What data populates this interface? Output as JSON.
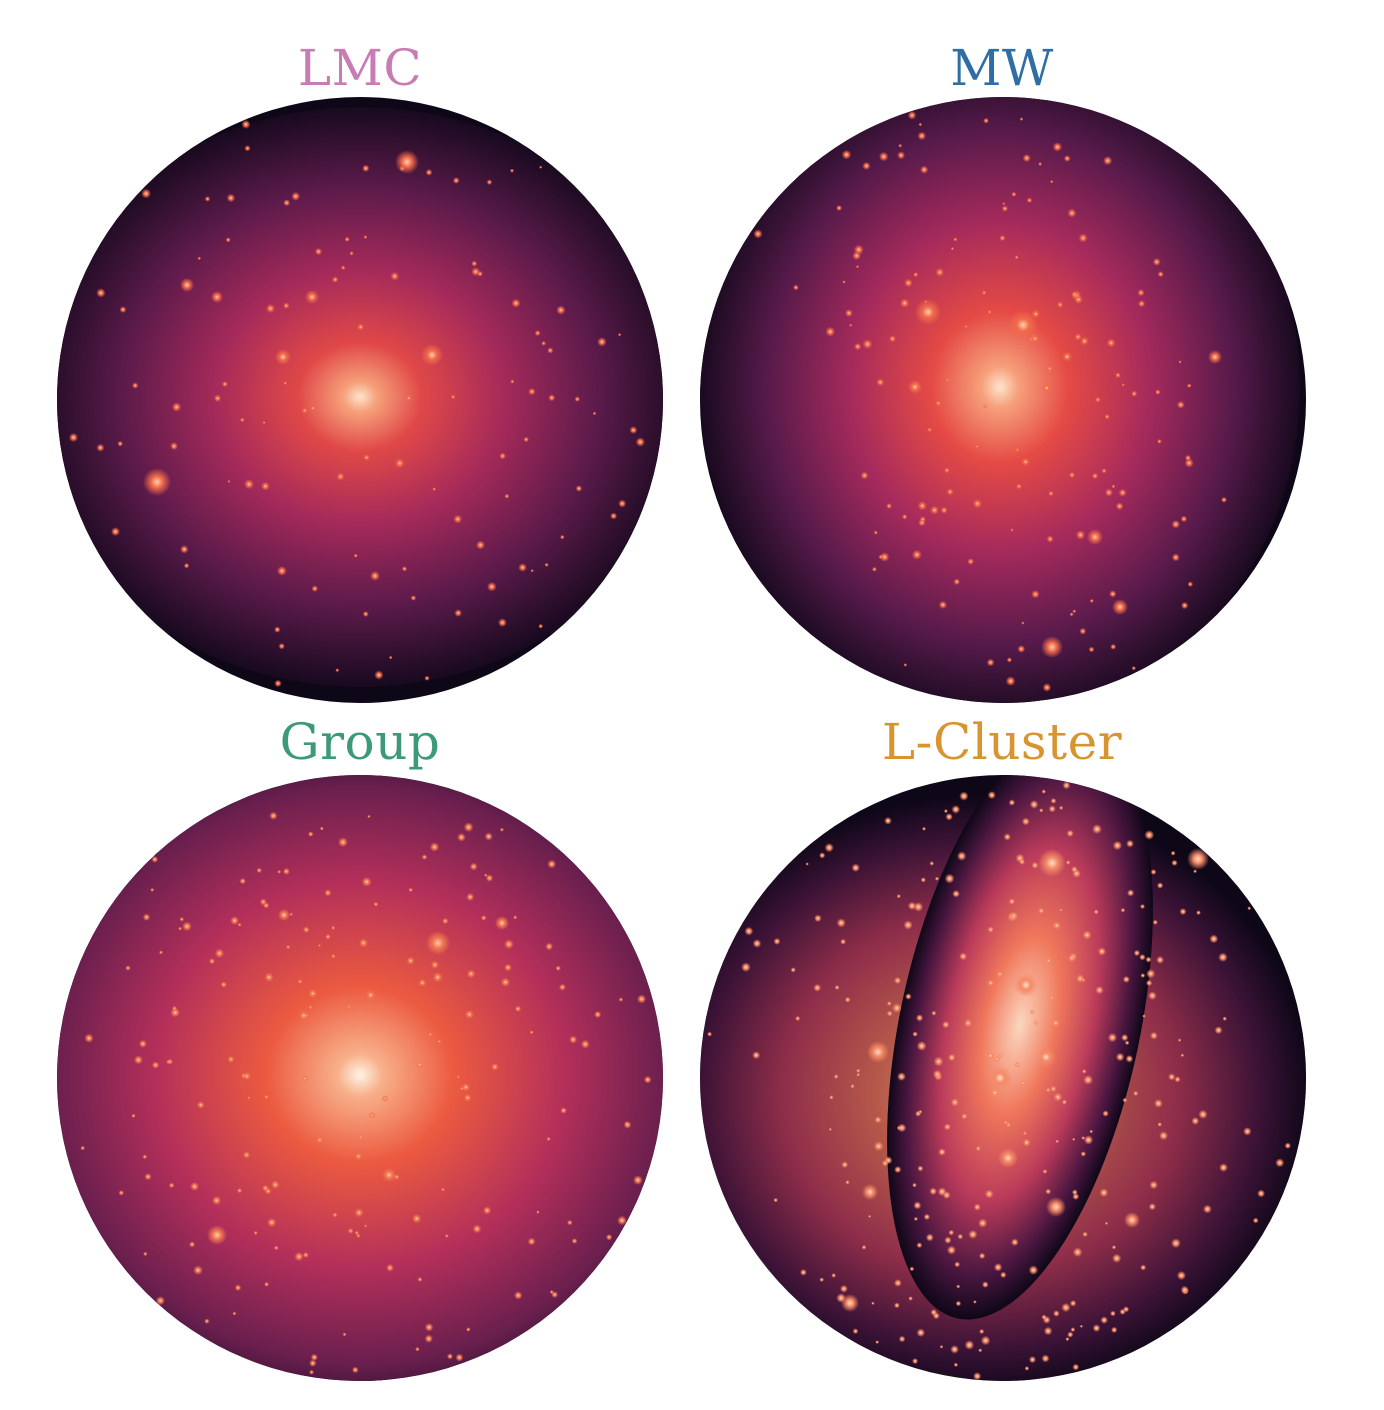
{
  "panels": [
    {
      "id": "lmc",
      "title": "LMC",
      "title_color": "#c77cb4",
      "palette": {
        "outer": "#0e0718",
        "mid": "#7a2456",
        "inner": "#e04848",
        "core": "#fde4cc"
      }
    },
    {
      "id": "mw",
      "title": "MW",
      "title_color": "#2f6ea5",
      "palette": {
        "outer": "#0e0718",
        "mid": "#7f2458",
        "inner": "#e54a45",
        "core": "#fde4cc"
      }
    },
    {
      "id": "group",
      "title": "Group",
      "title_color": "#3c9a78",
      "palette": {
        "outer": "#130a20",
        "mid": "#96295c",
        "inner": "#ec5a40",
        "core": "#fff3e6"
      }
    },
    {
      "id": "l-cluster",
      "title": "L-Cluster",
      "title_color": "#d8952f",
      "palette": {
        "outer": "#0e0718",
        "mid": "#8f2a5a",
        "inner": "#f0775b",
        "core": "#fbd7bf"
      }
    }
  ]
}
